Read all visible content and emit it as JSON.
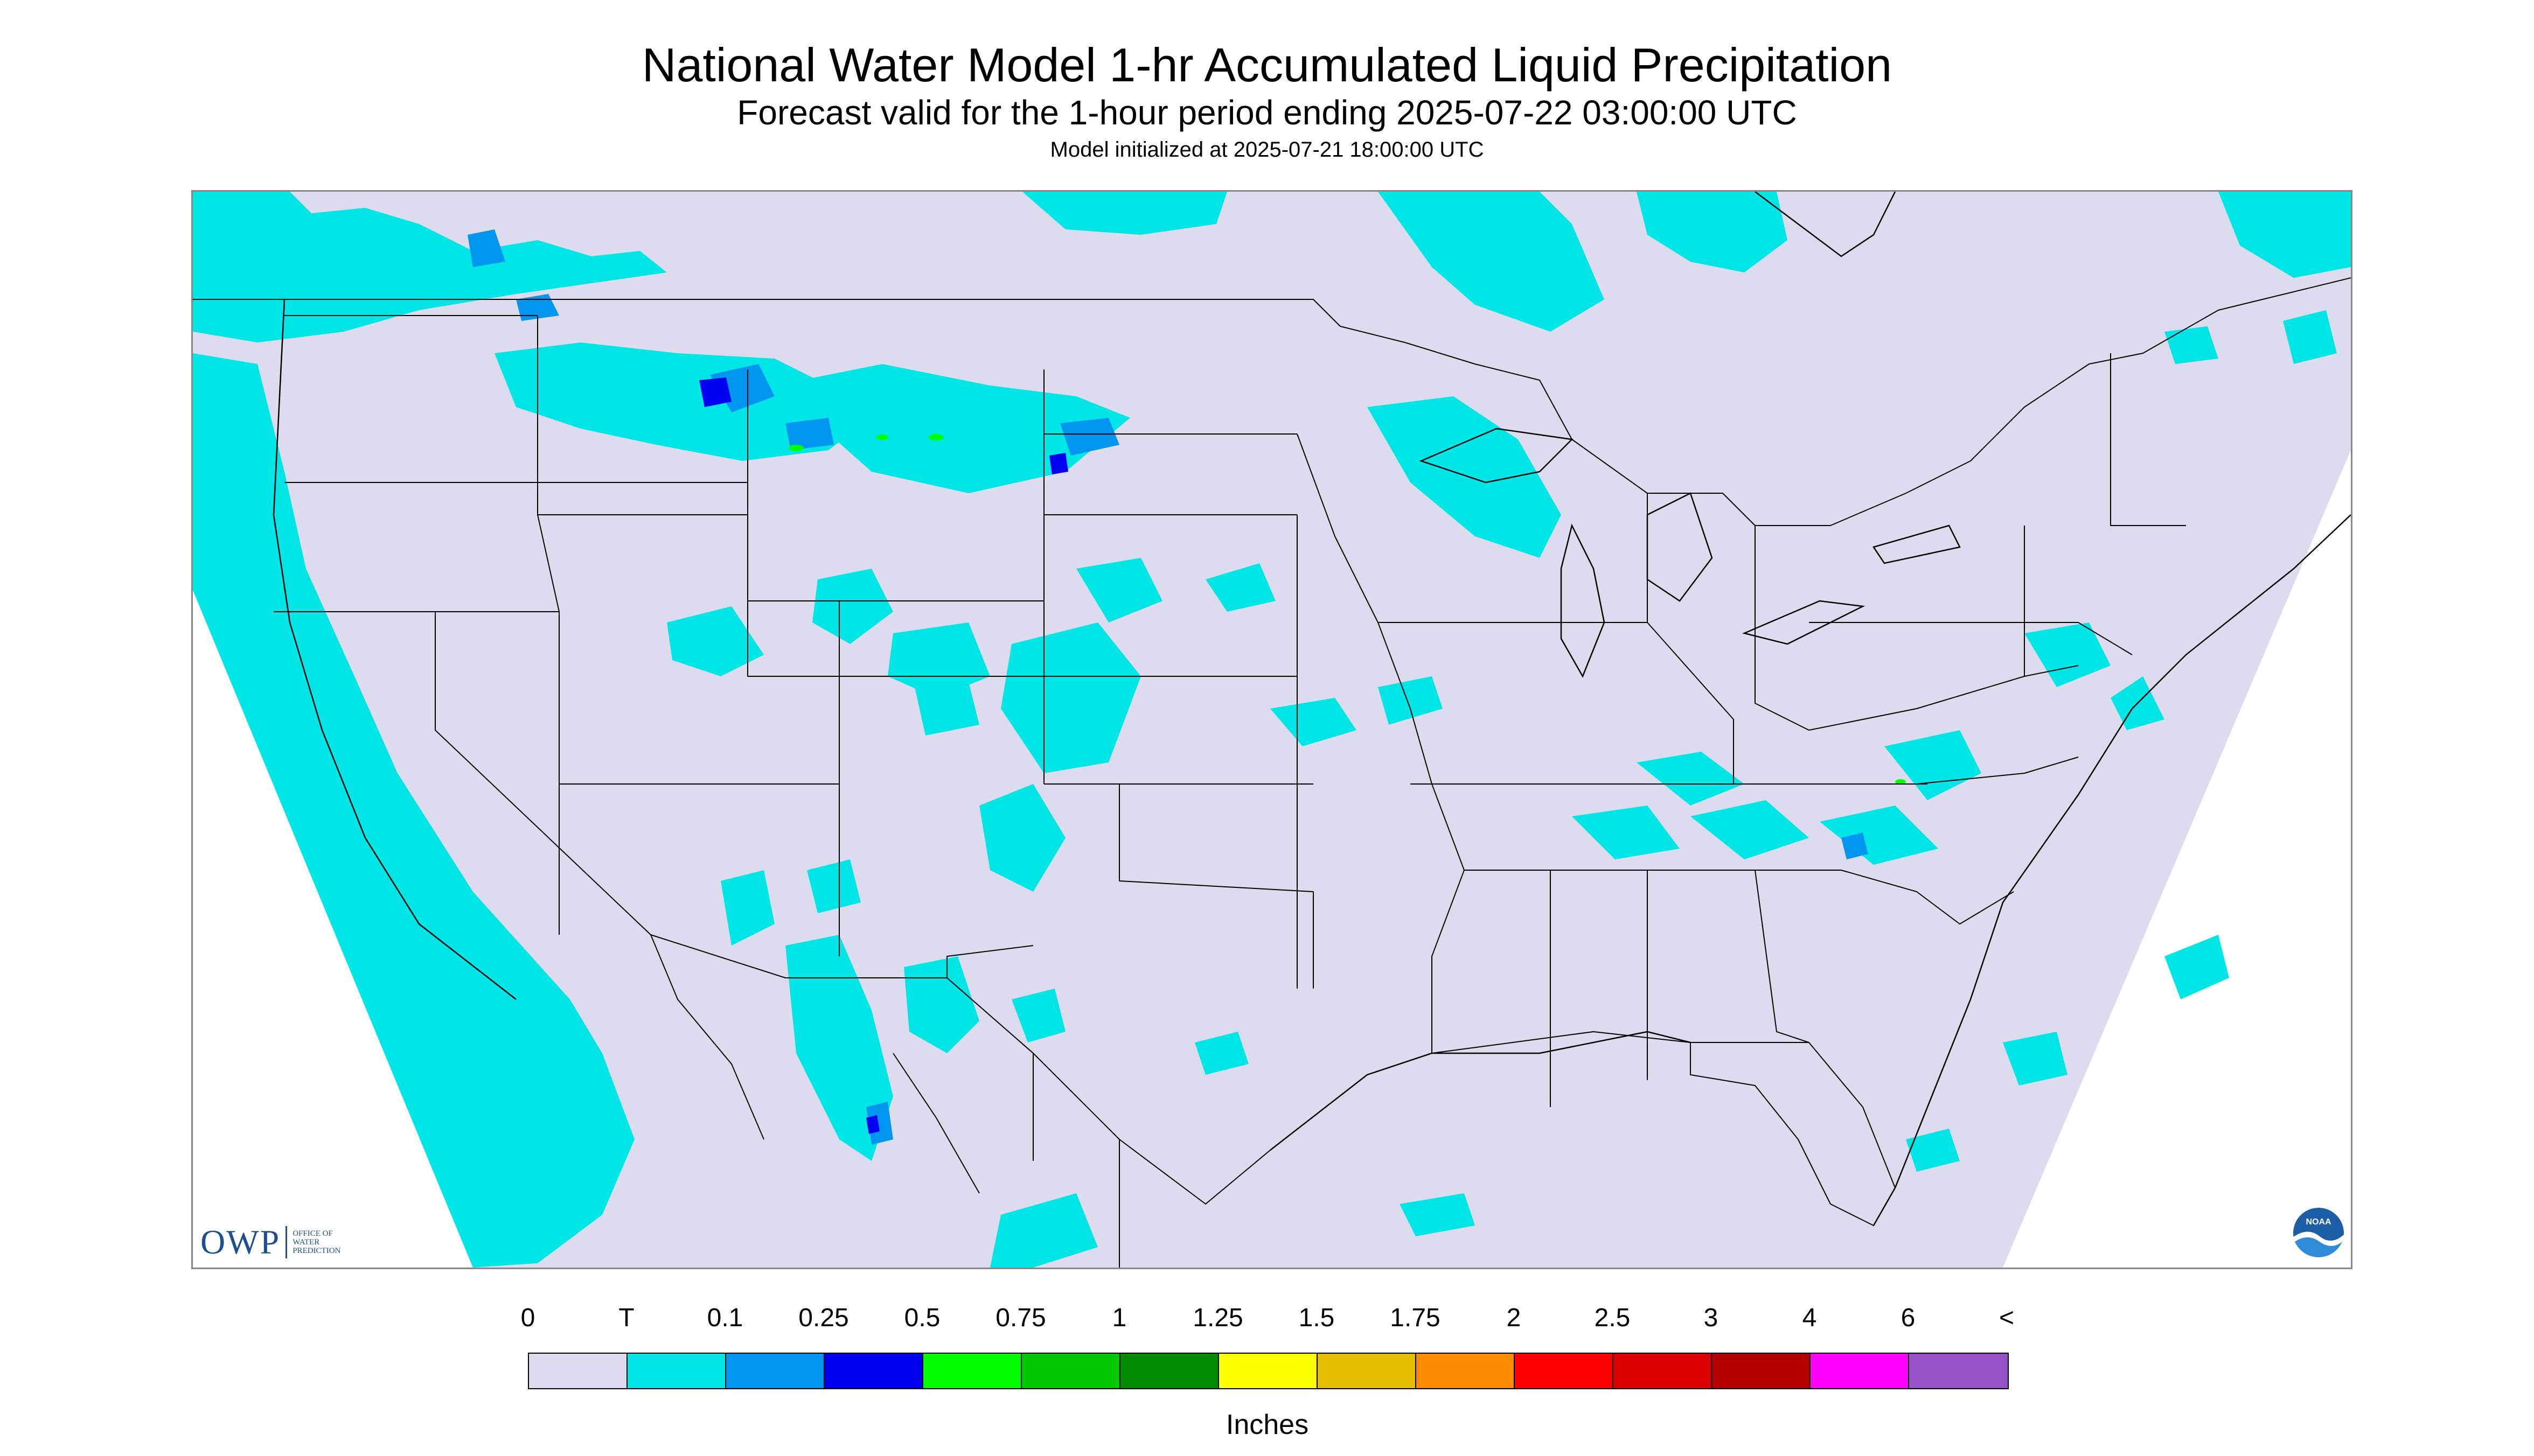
{
  "title": "National Water Model 1-hr Accumulated Liquid Precipitation",
  "subtitle": "Forecast valid for the 1-hour period ending 2025-07-22 03:00:00 UTC",
  "init_line": "Model initialized at 2025-07-21 18:00:00 UTC",
  "legend": {
    "labels": [
      "0",
      "T",
      "0.1",
      "0.25",
      "0.5",
      "0.75",
      "1",
      "1.25",
      "1.5",
      "1.75",
      "2",
      "2.5",
      "3",
      "4",
      "6",
      "<"
    ],
    "colors": [
      "#dcdcee",
      "#00e6e6",
      "#0096f0",
      "#0000f0",
      "#00ff00",
      "#00c800",
      "#008c00",
      "#ffff00",
      "#e6be00",
      "#ff8c00",
      "#ff0000",
      "#dc0000",
      "#b40000",
      "#ff00ff",
      "#9650c8"
    ],
    "units": "Inches"
  },
  "logos": {
    "owp_text": "OWP",
    "owp_sub": "OFFICE OF WATER PREDICTION",
    "noaa_text": "NOAA"
  },
  "map": {
    "region": "Contiguous United States",
    "background_color": "#dcdcee",
    "outside_domain_color": "#ffffff"
  }
}
